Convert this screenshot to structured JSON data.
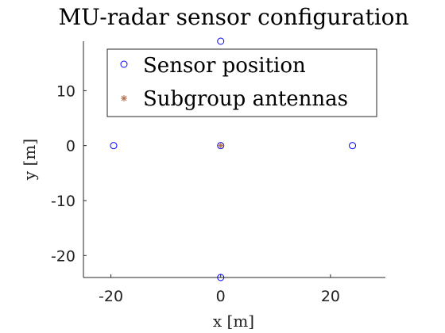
{
  "chart_data": {
    "type": "scatter",
    "title": "MU-radar sensor configuration",
    "xlabel": "x [m]",
    "ylabel": "y [m]",
    "xlim": [
      -25,
      30
    ],
    "ylim": [
      -24,
      19
    ],
    "xticks": [
      -20,
      0,
      20
    ],
    "xtick_labels": [
      "-20",
      "0",
      "20"
    ],
    "yticks": [
      -20,
      -10,
      0,
      10
    ],
    "ytick_labels": [
      "-20",
      "-10",
      "0",
      "10"
    ],
    "grid": false,
    "legend_position": "top",
    "series": [
      {
        "name": "Sensor position",
        "marker": "circle",
        "color": "#0000ff",
        "points": [
          {
            "x": 0,
            "y": 19
          },
          {
            "x": -19.5,
            "y": 0
          },
          {
            "x": 0,
            "y": 0
          },
          {
            "x": 24,
            "y": 0
          },
          {
            "x": 0,
            "y": -24
          }
        ]
      },
      {
        "name": "Subgroup antennas",
        "marker": "asterisk",
        "color": "#b06a4a",
        "points": [
          {
            "x": 0,
            "y": 0
          }
        ]
      }
    ]
  }
}
